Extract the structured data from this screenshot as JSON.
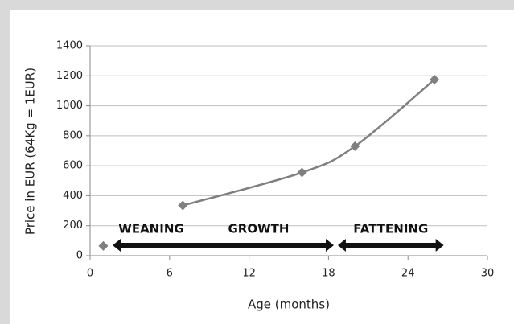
{
  "chart_data": {
    "type": "scatter-line",
    "x_label": "Age (months)",
    "y_label": "Price in EUR (64Kg = 1EUR)",
    "xlim": [
      0,
      30
    ],
    "xticks": [
      0,
      6,
      12,
      18,
      24,
      30
    ],
    "ylim": [
      0,
      1400
    ],
    "yticks": [
      0,
      200,
      400,
      600,
      800,
      1000,
      1200,
      1400
    ],
    "grid": true,
    "series": [
      {
        "color": "#7f7f7f",
        "line": false,
        "x": [
          1
        ],
        "values": [
          65
        ]
      },
      {
        "color": "#7f7f7f",
        "line": true,
        "x": [
          7,
          16,
          20,
          26
        ],
        "values": [
          335,
          555,
          730,
          1175
        ]
      }
    ],
    "phases": [
      {
        "label": "WEANING"
      },
      {
        "label": "GROWTH"
      },
      {
        "label": "FATTENING"
      }
    ],
    "arrows": [
      {
        "from": 1.7,
        "to": 18.4
      },
      {
        "from": 18.7,
        "to": 26.7
      }
    ]
  }
}
